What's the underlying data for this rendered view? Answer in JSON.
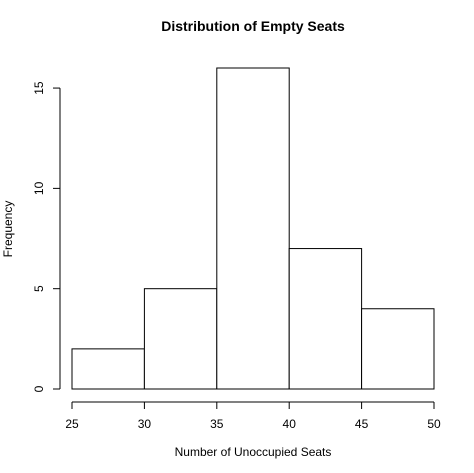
{
  "chart_data": {
    "type": "bar",
    "title": "Distribution of Empty Seats",
    "xlabel": "Number of Unoccupied Seats",
    "ylabel": "Frequency",
    "bins": [
      {
        "start": 25,
        "end": 30,
        "count": 2
      },
      {
        "start": 30,
        "end": 35,
        "count": 5
      },
      {
        "start": 35,
        "end": 40,
        "count": 16
      },
      {
        "start": 40,
        "end": 45,
        "count": 7
      },
      {
        "start": 45,
        "end": 50,
        "count": 4
      }
    ],
    "xlim": [
      25,
      50
    ],
    "ylim": [
      0,
      16
    ],
    "x_ticks": [
      25,
      30,
      35,
      40,
      45,
      50
    ],
    "y_ticks": [
      0,
      5,
      10,
      15
    ],
    "grid": false,
    "bar_fill": "#ffffff",
    "bar_stroke": "#000000"
  }
}
